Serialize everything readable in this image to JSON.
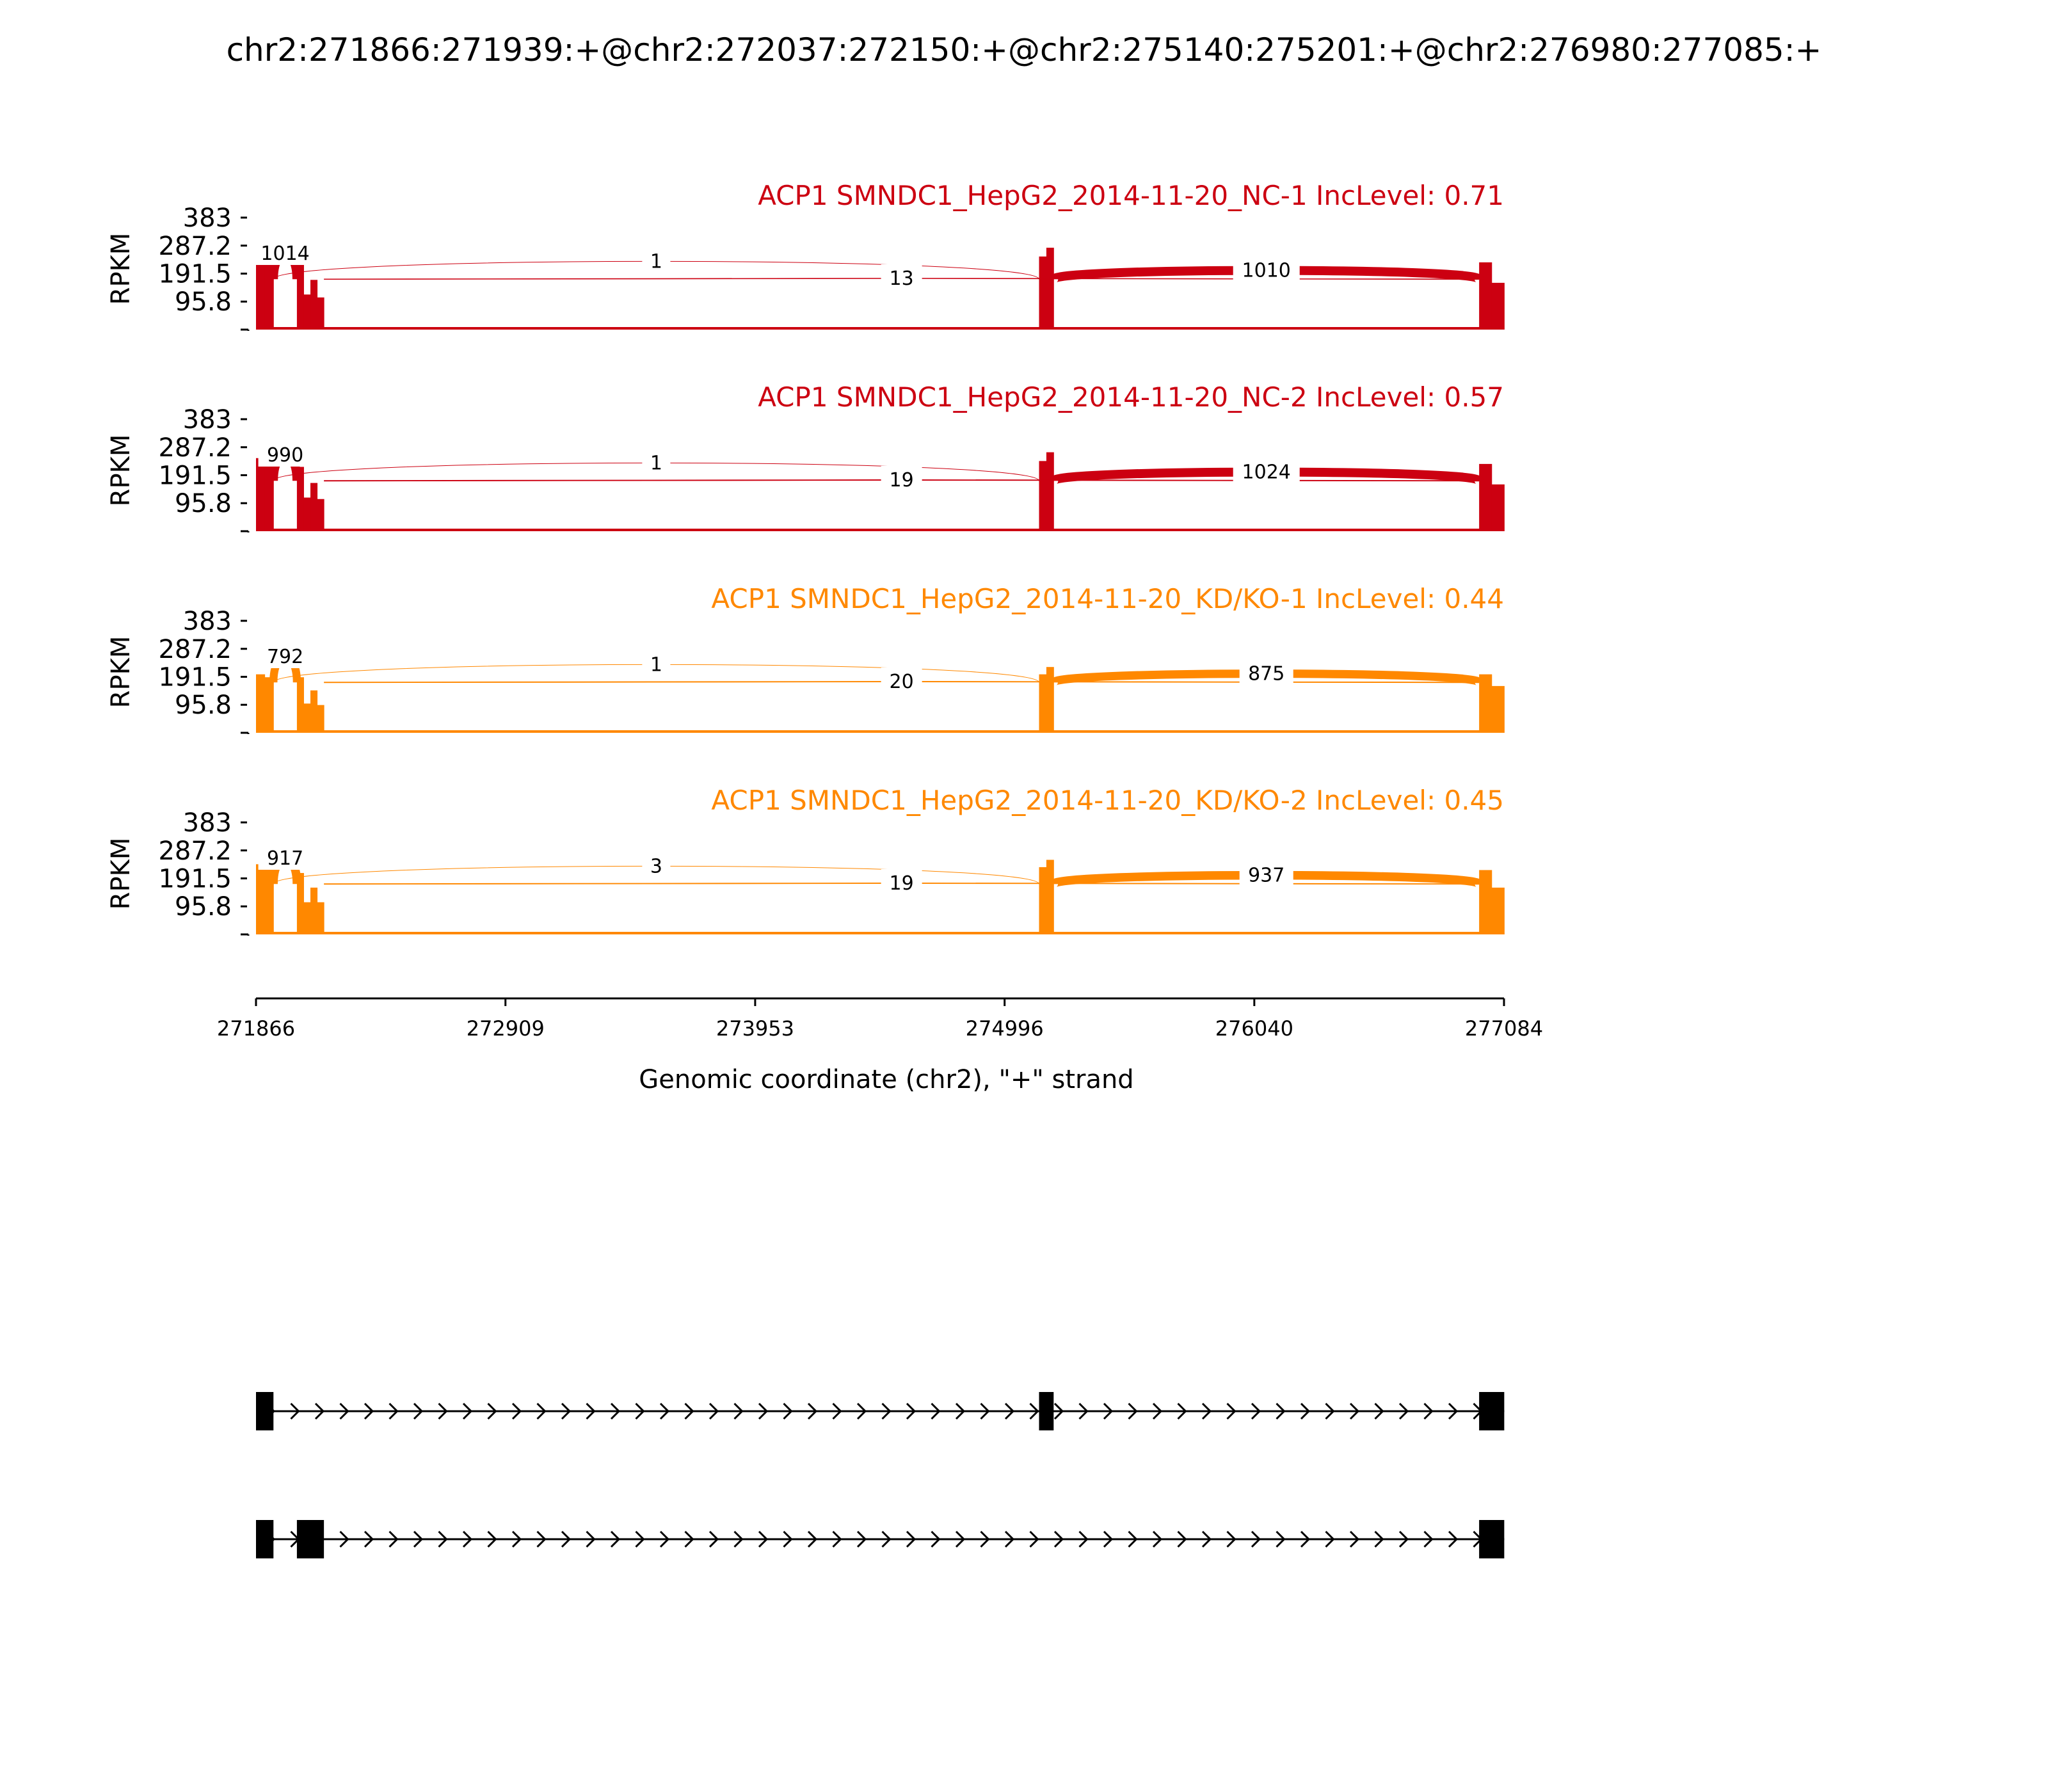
{
  "title": "chr2:271866:271939:+@chr2:272037:272150:+@chr2:275140:275201:+@chr2:276980:277085:+",
  "chart_data": {
    "type": "area",
    "subtype": "sashimi",
    "ylabel": "RPKM",
    "yticks": [
      "95.8",
      "191.5",
      "287.2",
      "383"
    ],
    "ylim": [
      0,
      383
    ],
    "xlabel": "Genomic coordinate (chr2), \"+\" strand",
    "xticks": [
      "271866",
      "272909",
      "273953",
      "274996",
      "276040",
      "277084"
    ],
    "xlim": [
      271866,
      277084
    ],
    "exons": [
      {
        "start": 271866,
        "end": 271939
      },
      {
        "start": 272037,
        "end": 272150
      },
      {
        "start": 275140,
        "end": 275201
      },
      {
        "start": 276980,
        "end": 277085
      }
    ],
    "panels": [
      {
        "label": "ACP1 SMNDC1_HepG2_2014-11-20_NC-1 IncLevel: 0.71",
        "color": "#cc0011",
        "exon_heights": [
          [
            260,
            240
          ],
          [
            230,
            120,
            170,
            110
          ],
          [
            250,
            280
          ],
          [
            230,
            160
          ]
        ],
        "junctions": [
          {
            "from": 271939,
            "to": 272037,
            "count": "1014"
          },
          {
            "from": 271939,
            "to": 275140,
            "count": "1"
          },
          {
            "from": 272150,
            "to": 276980,
            "count": "13"
          },
          {
            "from": 275201,
            "to": 276980,
            "count": "1010"
          }
        ]
      },
      {
        "label": "ACP1 SMNDC1_HepG2_2014-11-20_NC-2 IncLevel: 0.57",
        "color": "#cc0011",
        "exon_heights": [
          [
            250,
            235
          ],
          [
            220,
            115,
            165,
            110
          ],
          [
            240,
            270
          ],
          [
            230,
            160
          ]
        ],
        "junctions": [
          {
            "from": 271939,
            "to": 272037,
            "count": "990"
          },
          {
            "from": 271939,
            "to": 275140,
            "count": "1"
          },
          {
            "from": 272150,
            "to": 276980,
            "count": "19"
          },
          {
            "from": 275201,
            "to": 276980,
            "count": "1024"
          }
        ]
      },
      {
        "label": "ACP1 SMNDC1_HepG2_2014-11-20_KD/KO-1 IncLevel: 0.44",
        "color": "#ff8800",
        "exon_heights": [
          [
            200,
            190
          ],
          [
            190,
            100,
            145,
            95
          ],
          [
            200,
            225
          ],
          [
            200,
            160
          ]
        ],
        "junctions": [
          {
            "from": 271939,
            "to": 272037,
            "count": "792"
          },
          {
            "from": 271939,
            "to": 275140,
            "count": "1"
          },
          {
            "from": 272150,
            "to": 276980,
            "count": "20"
          },
          {
            "from": 275201,
            "to": 276980,
            "count": "875"
          }
        ]
      },
      {
        "label": "ACP1 SMNDC1_HepG2_2014-11-20_KD/KO-2 IncLevel: 0.45",
        "color": "#ff8800",
        "exon_heights": [
          [
            240,
            225
          ],
          [
            210,
            110,
            160,
            110
          ],
          [
            230,
            255
          ],
          [
            220,
            160
          ]
        ],
        "junctions": [
          {
            "from": 271939,
            "to": 272037,
            "count": "917"
          },
          {
            "from": 271939,
            "to": 275140,
            "count": "3"
          },
          {
            "from": 272150,
            "to": 276980,
            "count": "19"
          },
          {
            "from": 275201,
            "to": 276980,
            "count": "937"
          }
        ]
      }
    ],
    "isoforms": [
      {
        "exons": [
          [
            271866,
            271939
          ],
          [
            275140,
            275201
          ],
          [
            276980,
            277085
          ]
        ]
      },
      {
        "exons": [
          [
            271866,
            271939
          ],
          [
            272037,
            272150
          ],
          [
            276980,
            277085
          ]
        ]
      }
    ]
  }
}
